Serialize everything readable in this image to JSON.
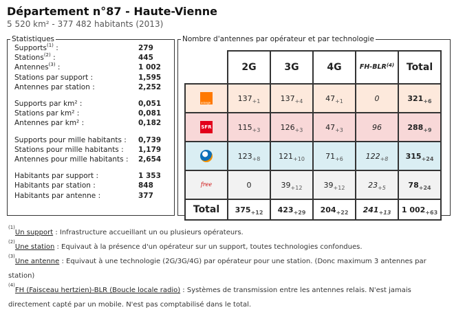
{
  "header": {
    "title": "Département n°87 - Haute-Vienne",
    "subtitle": "5 520 km² - 377 482 habitants (2013)"
  },
  "stats": {
    "legend": "Statistiques",
    "groups": [
      [
        {
          "label": "Supports",
          "sup": "(1)",
          "value": "279"
        },
        {
          "label": "Stations",
          "sup": "(2)",
          "value": "445"
        },
        {
          "label": "Antennes",
          "sup": "(3)",
          "value": "1 002"
        },
        {
          "label": "Stations par support",
          "value": "1,595"
        },
        {
          "label": "Antennes par station",
          "value": "2,252"
        }
      ],
      [
        {
          "label": "Supports par km²",
          "value": "0,051"
        },
        {
          "label": "Stations par km²",
          "value": "0,081"
        },
        {
          "label": "Antennes par km²",
          "value": "0,182"
        }
      ],
      [
        {
          "label": "Supports pour mille habitants",
          "value": "0,739"
        },
        {
          "label": "Stations pour mille habitants",
          "value": "1,179"
        },
        {
          "label": "Antennes pour mille habitants",
          "value": "2,654"
        }
      ],
      [
        {
          "label": "Habitants par support",
          "value": "1 353"
        },
        {
          "label": "Habitants par station",
          "value": "848"
        },
        {
          "label": "Habitants par antenne",
          "value": "377"
        }
      ]
    ]
  },
  "operators": {
    "legend": "Nombre d'antennes par opérateur et par technologie",
    "headers": [
      "2G",
      "3G",
      "4G",
      "FH-BLR",
      "Total"
    ],
    "fh_sup": "(4)",
    "rows": [
      {
        "name": "orange",
        "logo_text": "orange",
        "color": "#ff7900",
        "cells": [
          [
            "137",
            "+1"
          ],
          [
            "137",
            "+4"
          ],
          [
            "47",
            "+1"
          ],
          [
            "0",
            ""
          ],
          [
            "321",
            "+6"
          ]
        ]
      },
      {
        "name": "sfr",
        "logo_text": "SFR",
        "color": "#e2001a",
        "cells": [
          [
            "115",
            "+3"
          ],
          [
            "126",
            "+3"
          ],
          [
            "47",
            "+3"
          ],
          [
            "96",
            ""
          ],
          [
            "288",
            "+9"
          ]
        ]
      },
      {
        "name": "bouygues",
        "logo_text": "",
        "color": "#0d6fb8",
        "cells": [
          [
            "123",
            "+8"
          ],
          [
            "121",
            "+10"
          ],
          [
            "71",
            "+6"
          ],
          [
            "122",
            "+8"
          ],
          [
            "315",
            "+24"
          ]
        ]
      },
      {
        "name": "free",
        "logo_text": "free",
        "color": "#cc0000",
        "cells": [
          [
            "0",
            ""
          ],
          [
            "39",
            "+12"
          ],
          [
            "39",
            "+12"
          ],
          [
            "23",
            "+5"
          ],
          [
            "78",
            "+24"
          ]
        ]
      }
    ],
    "total_label": "Total",
    "totals": [
      [
        "375",
        "+12"
      ],
      [
        "423",
        "+29"
      ],
      [
        "204",
        "+22"
      ],
      [
        "241",
        "+13"
      ],
      [
        "1 002",
        "+63"
      ]
    ]
  },
  "notes": [
    {
      "sup": "(1)",
      "term": "Un support",
      "text": " : Infrastructure accueillant un ou plusieurs opérateurs."
    },
    {
      "sup": "(2)",
      "term": "Une station",
      "text": " : Equivaut à la présence d'un opérateur sur un support, toutes technologies confondues."
    },
    {
      "sup": "(3)",
      "term": "Une antenne",
      "text": " : Equivaut à une technologie (2G/3G/4G) par opérateur pour une station. (Donc maximum 3 antennes par station)"
    },
    {
      "sup": "(4)",
      "term": "FH (Faisceau hertzien)-BLR (Boucle locale radio)",
      "text": " : Systèmes de transmission entre les antennes relais. N'est jamais directement capté par un mobile. N'est pas comptabilisé dans le total."
    }
  ]
}
